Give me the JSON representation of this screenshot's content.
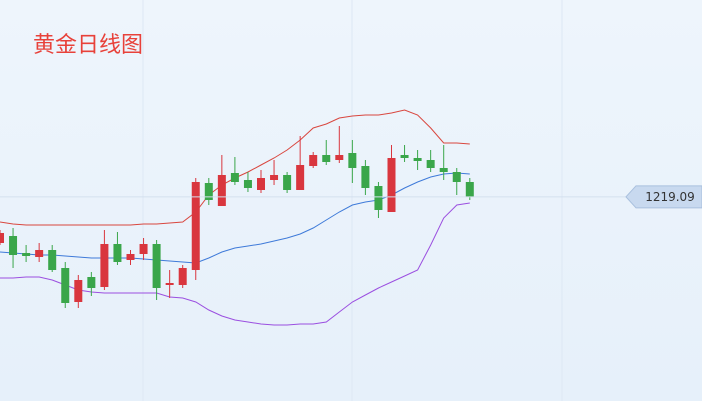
{
  "chart_data": {
    "type": "candlestick",
    "title": "黄金日线图",
    "ylim": [
      1117,
      1317.5
    ],
    "up_color": "#d9363e",
    "down_color": "#3aa64a",
    "open": [
      1196,
      1199.5,
      1191,
      1189,
      1192.5,
      1183.5,
      1166.5,
      1179,
      1174,
      1195.5,
      1187.5,
      1190.5,
      1195.5,
      1175,
      1175,
      1182.5,
      1226,
      1214.5,
      1231,
      1227.5,
      1222.5,
      1227.5,
      1230,
      1222.5,
      1234.5,
      1240,
      1237.5,
      1241,
      1234.5,
      1224.5,
      1211.5,
      1240,
      1238.5,
      1237.5,
      1233.5,
      1231.5,
      1226.5
    ],
    "high": [
      1202.5,
      1203.5,
      1195,
      1196,
      1195,
      1186.5,
      1180,
      1181.5,
      1202.5,
      1201.5,
      1192.5,
      1198.5,
      1197.5,
      1182.5,
      1185,
      1228.5,
      1228.5,
      1240,
      1239,
      1231.5,
      1232.5,
      1237.5,
      1231.5,
      1249.5,
      1241.5,
      1247.5,
      1254.5,
      1247.5,
      1237.5,
      1226.5,
      1245,
      1245,
      1242.5,
      1242.5,
      1245,
      1233.5,
      1228.5
    ],
    "low": [
      1195,
      1183.5,
      1186.5,
      1186.5,
      1181.5,
      1163.5,
      1163.5,
      1169.5,
      1172.5,
      1185,
      1185,
      1187.5,
      1167.5,
      1168.5,
      1173.5,
      1177.5,
      1215,
      1214.5,
      1225,
      1221.5,
      1221,
      1225,
      1221,
      1222.5,
      1233.5,
      1235,
      1236,
      1226,
      1220,
      1208.5,
      1211.5,
      1236.5,
      1232.5,
      1231.5,
      1227.5,
      1220,
      1217.5
    ],
    "close": [
      1201,
      1190,
      1189.5,
      1192.5,
      1182.5,
      1166,
      1177.5,
      1173.5,
      1195.5,
      1186.5,
      1190.5,
      1195.5,
      1173.5,
      1176,
      1183.5,
      1226.5,
      1217.5,
      1230,
      1226.5,
      1223.5,
      1228.5,
      1230,
      1222.5,
      1235,
      1240,
      1236.5,
      1240,
      1233.5,
      1223.5,
      1212.5,
      1238.5,
      1238.5,
      1237,
      1233.5,
      1231.5,
      1226.5,
      1219
    ],
    "series": [
      {
        "color": "#d9463e",
        "values": [
          1206.5,
          1205.5,
          1205,
          1205,
          1205,
          1205,
          1205,
          1205,
          1205,
          1205,
          1205,
          1205.5,
          1205.5,
          1206,
          1206.5,
          1211.5,
          1220,
          1225,
          1228.5,
          1231.5,
          1235,
          1238.5,
          1242.5,
          1247.5,
          1253.5,
          1255.5,
          1258.5,
          1259.5,
          1260,
          1260,
          1261,
          1262.5,
          1260,
          1253.5,
          1246,
          1246,
          1245.5
        ]
      },
      {
        "color": "#3e7ad9",
        "values": [
          1191.5,
          1191,
          1190.5,
          1190,
          1190,
          1189.5,
          1189,
          1188.5,
          1188.5,
          1188.5,
          1188.5,
          1188,
          1187.5,
          1187,
          1186.5,
          1186,
          1188.5,
          1191.5,
          1193.5,
          1194.5,
          1195.5,
          1197,
          1198.5,
          1200.5,
          1203.5,
          1207.5,
          1211.5,
          1215,
          1216.5,
          1217.5,
          1220,
          1223.5,
          1226.5,
          1229,
          1230.5,
          1231,
          1230.5
        ]
      },
      {
        "color": "#9b4fe0",
        "values": [
          1178.5,
          1178.5,
          1179,
          1179,
          1177.5,
          1175,
          1172.5,
          1171.5,
          1171,
          1171,
          1171,
          1171,
          1171,
          1169,
          1168.5,
          1166.5,
          1162.5,
          1159.5,
          1157.5,
          1156.5,
          1155.5,
          1155,
          1155,
          1155.5,
          1155.5,
          1156.5,
          1161.5,
          1166.5,
          1170,
          1173.5,
          1176.5,
          1179.5,
          1182.5,
          1195,
          1208.5,
          1215,
          1216
        ]
      }
    ],
    "current_price": 1219.09
  }
}
